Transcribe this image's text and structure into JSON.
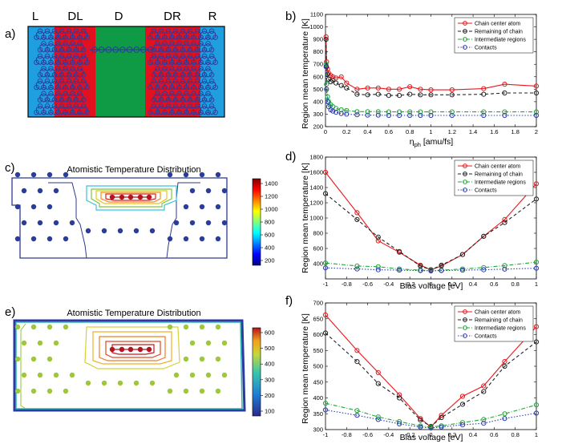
{
  "panel_labels": {
    "a": "a)",
    "b": "b)",
    "c": "c)",
    "d": "d)",
    "e": "e)",
    "f": "f)"
  },
  "panel_a": {
    "regions": [
      "L",
      "DL",
      "D",
      "DR",
      "R"
    ],
    "colors": {
      "L": "#1f9fe0",
      "DL": "#e3101f",
      "D": "#0f9a46",
      "DR": "#e3101f",
      "R": "#1f9fe0",
      "atom": "#2a3d9a"
    }
  },
  "maps": {
    "c": {
      "title": "Atomistic Temperature Distribution",
      "colorbar_ticks": [
        "1400",
        "1200",
        "1000",
        "800",
        "600",
        "400",
        "200"
      ]
    },
    "e": {
      "title": "Atomistic Temperature Distribution",
      "colorbar_ticks": [
        "600",
        "500",
        "400",
        "300",
        "200",
        "100"
      ]
    }
  },
  "chart_data": [
    {
      "id": "b",
      "type": "line",
      "xlabel_main": "η",
      "xlabel_sub": "ph",
      "xlabel_rest": " [amu/fs]",
      "ylabel": "Region mean temperature [K]",
      "xlim": [
        0,
        2
      ],
      "ylim": [
        200,
        1100
      ],
      "xticks": [
        0,
        0.2,
        0.4,
        0.6,
        0.8,
        1,
        1.2,
        1.4,
        1.6,
        1.8,
        2
      ],
      "xtick_labels": [
        "0",
        "0.2",
        "0.4",
        "0.6",
        "0.8",
        "1",
        "1.2",
        "1.4",
        "1.6",
        "1.8",
        "2"
      ],
      "yticks": [
        200,
        300,
        400,
        500,
        600,
        700,
        800,
        900,
        1000,
        1100
      ],
      "ytick_labels": [
        "200",
        "300",
        "400",
        "500",
        "600",
        "700",
        "800",
        "900",
        "1000",
        "1100"
      ],
      "legend": "top-right",
      "series": [
        {
          "name": "Chain center atom",
          "color": "#e8181c",
          "dash": "",
          "x": [
            0.005,
            0.01,
            0.02,
            0.03,
            0.05,
            0.07,
            0.1,
            0.15,
            0.2,
            0.3,
            0.4,
            0.5,
            0.6,
            0.7,
            0.8,
            0.9,
            1.0,
            1.2,
            1.5,
            1.7,
            2.0
          ],
          "values": [
            920,
            720,
            660,
            630,
            610,
            600,
            590,
            600,
            550,
            500,
            510,
            510,
            500,
            500,
            520,
            500,
            495,
            495,
            505,
            540,
            525
          ]
        },
        {
          "name": "Remaining of chain",
          "color": "#222222",
          "dash": "4 3",
          "x": [
            0.005,
            0.01,
            0.02,
            0.03,
            0.05,
            0.07,
            0.1,
            0.15,
            0.2,
            0.3,
            0.4,
            0.5,
            0.6,
            0.7,
            0.8,
            0.9,
            1.0,
            1.2,
            1.5,
            1.7,
            2.0
          ],
          "values": [
            900,
            680,
            620,
            580,
            560,
            570,
            550,
            530,
            510,
            460,
            455,
            460,
            450,
            450,
            460,
            455,
            455,
            455,
            460,
            470,
            470
          ]
        },
        {
          "name": "Intermediate regions",
          "color": "#1ea83a",
          "dash": "5 2 1 2",
          "x": [
            0.005,
            0.01,
            0.02,
            0.03,
            0.05,
            0.07,
            0.1,
            0.15,
            0.2,
            0.3,
            0.4,
            0.5,
            0.6,
            0.7,
            0.8,
            0.9,
            1.0,
            1.2,
            1.5,
            1.7,
            2.0
          ],
          "values": [
            700,
            540,
            440,
            400,
            375,
            360,
            345,
            335,
            330,
            320,
            320,
            320,
            318,
            318,
            318,
            318,
            318,
            318,
            318,
            318,
            318
          ]
        },
        {
          "name": "Contacts",
          "color": "#2c3cb0",
          "dash": "1.5 2",
          "x": [
            0.005,
            0.01,
            0.02,
            0.03,
            0.05,
            0.07,
            0.1,
            0.15,
            0.2,
            0.3,
            0.4,
            0.5,
            0.6,
            0.7,
            0.8,
            0.9,
            1.0,
            1.2,
            1.5,
            1.7,
            2.0
          ],
          "values": [
            680,
            500,
            400,
            360,
            335,
            325,
            315,
            305,
            300,
            295,
            292,
            292,
            290,
            290,
            290,
            290,
            290,
            290,
            290,
            290,
            290
          ]
        }
      ]
    },
    {
      "id": "d",
      "type": "line",
      "xlabel": "Bias voltage [eV]",
      "ylabel": "Region mean temperature [K]",
      "xlim": [
        -1,
        1
      ],
      "ylim": [
        200,
        1800
      ],
      "xticks": [
        -1,
        -0.8,
        -0.6,
        -0.4,
        -0.2,
        0,
        0.2,
        0.4,
        0.6,
        0.8,
        1
      ],
      "xtick_labels": [
        "-1",
        "-0.8",
        "-0.6",
        "-0.4",
        "-0.2",
        "0",
        "0.2",
        "0.4",
        "0.6",
        "0.8",
        "1"
      ],
      "yticks": [
        400,
        600,
        800,
        1000,
        1200,
        1400,
        1600,
        1800
      ],
      "ytick_labels": [
        "400",
        "600",
        "800",
        "1000",
        "1200",
        "1400",
        "1600",
        "1800"
      ],
      "legend": "top-right",
      "series": [
        {
          "name": "Chain center atom",
          "color": "#e8181c",
          "dash": "",
          "x": [
            -1,
            -0.7,
            -0.5,
            -0.3,
            -0.1,
            0,
            0.1,
            0.3,
            0.5,
            0.7,
            1
          ],
          "values": [
            1600,
            1070,
            700,
            550,
            380,
            320,
            370,
            520,
            760,
            980,
            1450
          ]
        },
        {
          "name": "Remaining of chain",
          "color": "#222222",
          "dash": "4 3",
          "x": [
            -1,
            -0.7,
            -0.5,
            -0.3,
            -0.1,
            0,
            0.1,
            0.3,
            0.5,
            0.7,
            1
          ],
          "values": [
            1320,
            980,
            750,
            560,
            370,
            320,
            380,
            520,
            760,
            940,
            1250
          ]
        },
        {
          "name": "Intermediate regions",
          "color": "#1ea83a",
          "dash": "5 2 1 2",
          "x": [
            -1,
            -0.7,
            -0.5,
            -0.3,
            -0.1,
            0,
            0.1,
            0.3,
            0.5,
            0.7,
            1
          ],
          "values": [
            410,
            370,
            360,
            330,
            315,
            310,
            315,
            330,
            350,
            375,
            420
          ]
        },
        {
          "name": "Contacts",
          "color": "#2c3cb0",
          "dash": "1.5 2",
          "x": [
            -1,
            -0.7,
            -0.5,
            -0.3,
            -0.1,
            0,
            0.1,
            0.3,
            0.5,
            0.7,
            1
          ],
          "values": [
            345,
            330,
            320,
            315,
            310,
            305,
            310,
            315,
            320,
            328,
            340
          ]
        }
      ]
    },
    {
      "id": "f",
      "type": "line",
      "xlabel": "Bias voltage [eV]",
      "ylabel": "Region mean temperature [K]",
      "xlim": [
        -1,
        1
      ],
      "ylim": [
        300,
        700
      ],
      "xticks": [
        -1,
        -0.8,
        -0.6,
        -0.4,
        -0.2,
        0,
        0.2,
        0.4,
        0.6,
        0.8,
        1
      ],
      "xtick_labels": [
        "-1",
        "-0.8",
        "-0.6",
        "-0.4",
        "-0.2",
        "0",
        "0.2",
        "0.4",
        "0.6",
        "0.8",
        "1"
      ],
      "yticks": [
        300,
        350,
        400,
        450,
        500,
        550,
        600,
        650,
        700
      ],
      "ytick_labels": [
        "300",
        "350",
        "400",
        "450",
        "500",
        "550",
        "600",
        "650",
        "700"
      ],
      "legend": "top-right",
      "series": [
        {
          "name": "Chain center atom",
          "color": "#e8181c",
          "dash": "",
          "x": [
            -1,
            -0.7,
            -0.5,
            -0.3,
            -0.1,
            0,
            0.1,
            0.3,
            0.5,
            0.7,
            1
          ],
          "values": [
            662,
            550,
            480,
            410,
            335,
            308,
            345,
            405,
            438,
            515,
            625
          ]
        },
        {
          "name": "Remaining of chain",
          "color": "#222222",
          "dash": "4 3",
          "x": [
            -1,
            -0.7,
            -0.5,
            -0.3,
            -0.1,
            0,
            0.1,
            0.3,
            0.5,
            0.7,
            1
          ],
          "values": [
            605,
            515,
            445,
            400,
            330,
            310,
            338,
            380,
            420,
            500,
            577
          ]
        },
        {
          "name": "Intermediate regions",
          "color": "#1ea83a",
          "dash": "5 2 1 2",
          "x": [
            -1,
            -0.7,
            -0.5,
            -0.3,
            -0.1,
            0,
            0.1,
            0.3,
            0.5,
            0.7,
            1
          ],
          "values": [
            383,
            360,
            340,
            325,
            312,
            308,
            312,
            322,
            332,
            350,
            378
          ]
        },
        {
          "name": "Contacts",
          "color": "#2c3cb0",
          "dash": "1.5 2",
          "x": [
            -1,
            -0.7,
            -0.5,
            -0.3,
            -0.1,
            0,
            0.1,
            0.3,
            0.5,
            0.7,
            1
          ],
          "values": [
            362,
            345,
            332,
            318,
            308,
            305,
            308,
            315,
            320,
            335,
            352
          ]
        }
      ]
    }
  ]
}
